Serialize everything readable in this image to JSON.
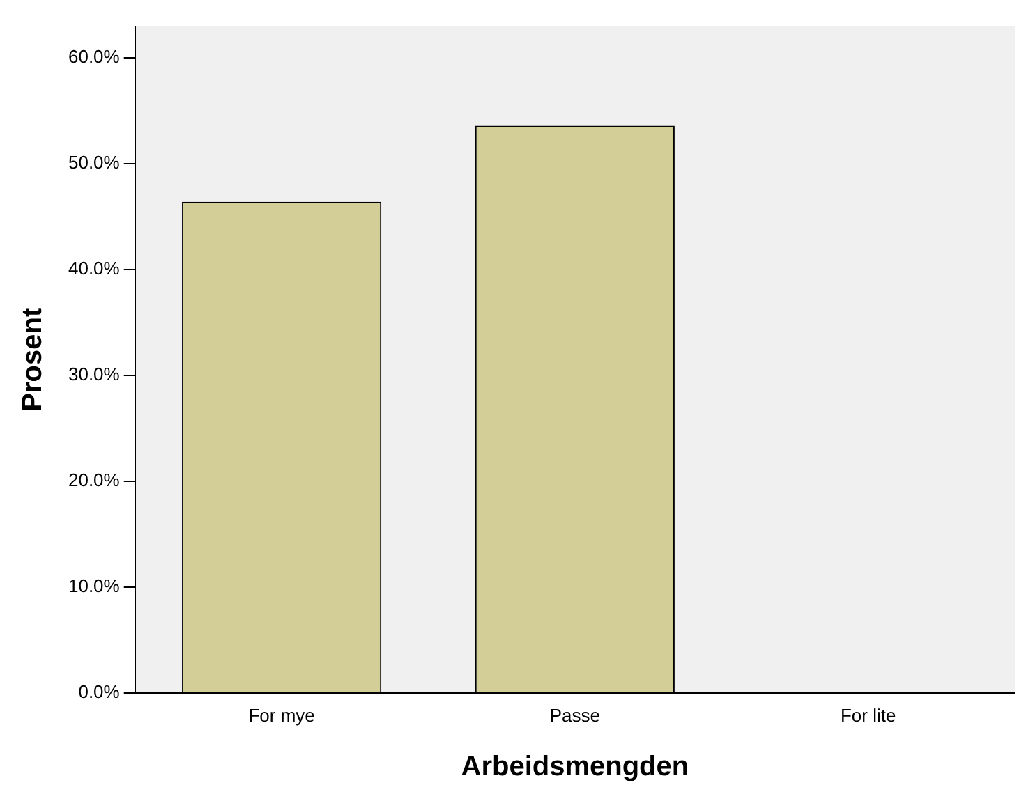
{
  "chart_data": {
    "type": "bar",
    "xlabel": "Arbeidsmengden",
    "ylabel": "Prosent",
    "categories": [
      "For mye",
      "Passe",
      "For lite"
    ],
    "values": [
      46.4,
      53.6,
      0
    ],
    "color": "#d3ce97",
    "ylim": [
      0,
      63
    ],
    "yticks": [
      {
        "value": 0,
        "label": "0.0%"
      },
      {
        "value": 10,
        "label": "10.0%"
      },
      {
        "value": 20,
        "label": "20.0%"
      },
      {
        "value": 30,
        "label": "30.0%"
      },
      {
        "value": 40,
        "label": "40.0%"
      },
      {
        "value": 50,
        "label": "50.0%"
      },
      {
        "value": 60,
        "label": "60.0%"
      }
    ],
    "grid": false,
    "legend": false
  }
}
